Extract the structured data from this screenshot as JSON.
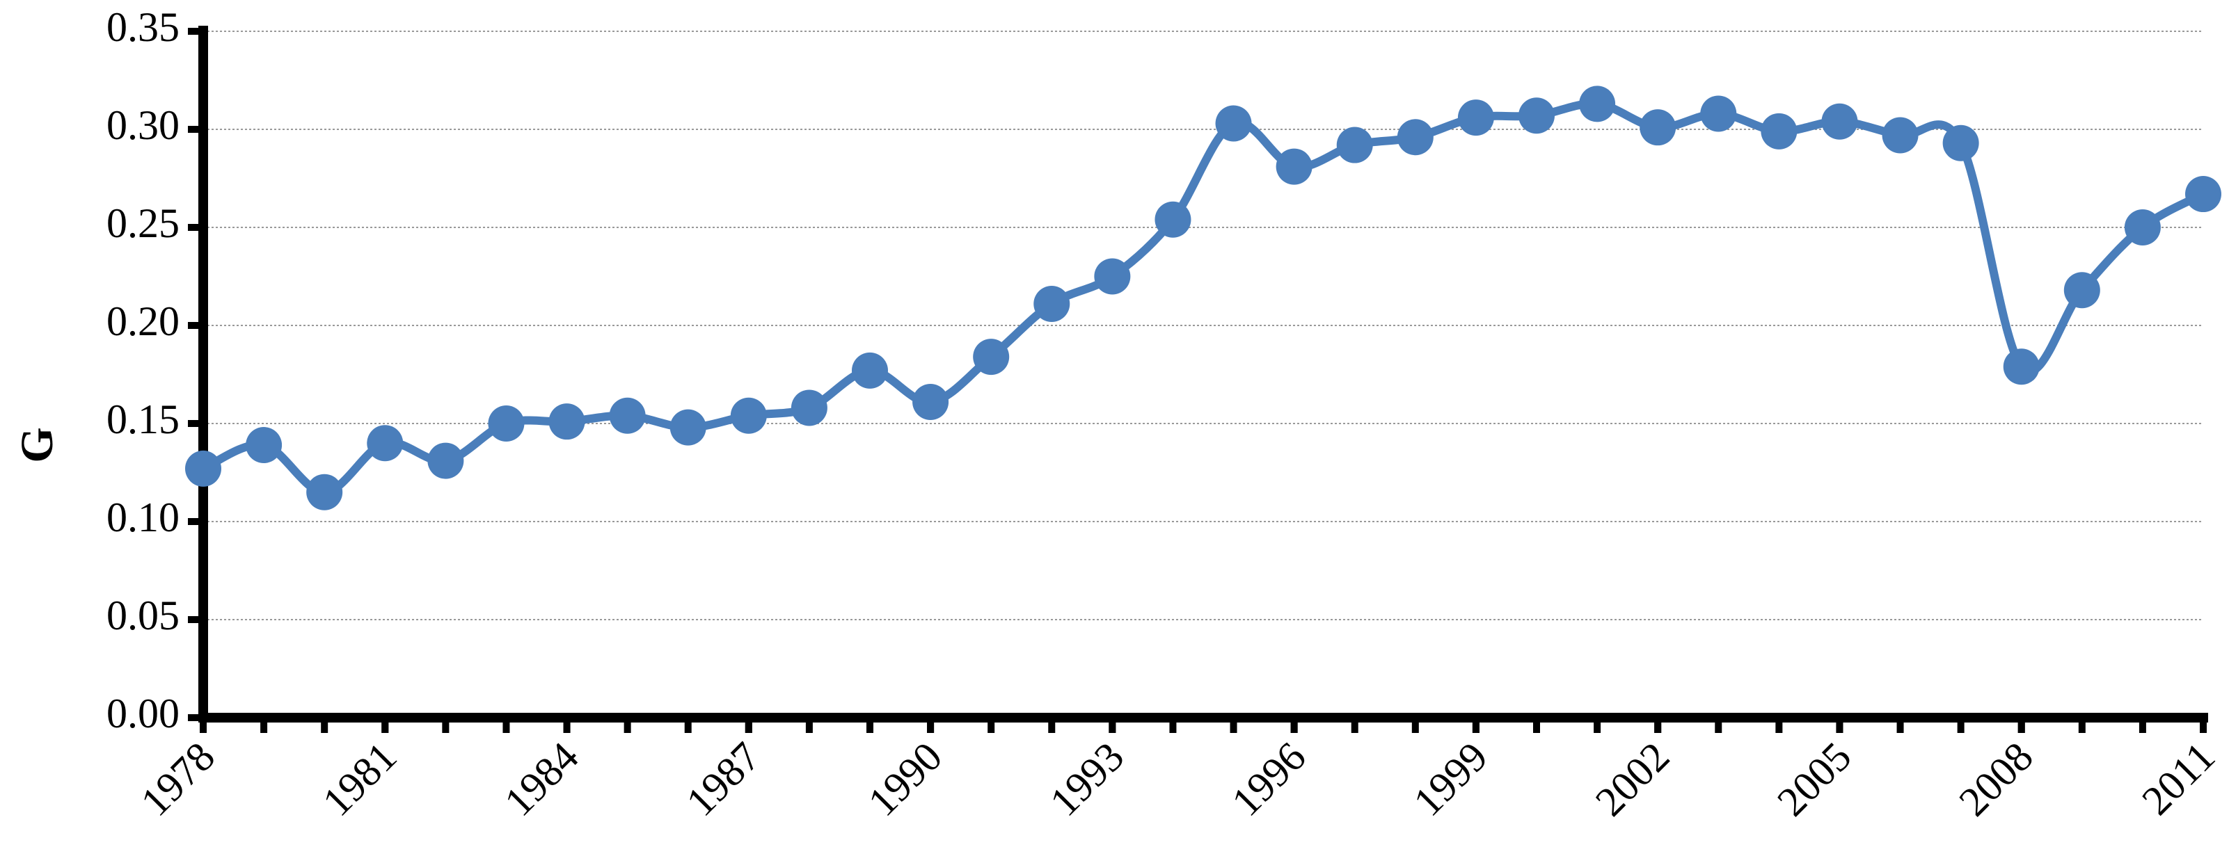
{
  "chart_data": {
    "type": "line",
    "y_label": "G",
    "x": [
      1978,
      1979,
      1980,
      1981,
      1982,
      1983,
      1984,
      1985,
      1986,
      1987,
      1988,
      1989,
      1990,
      1991,
      1992,
      1993,
      1994,
      1995,
      1996,
      1997,
      1998,
      1999,
      2000,
      2001,
      2002,
      2003,
      2004,
      2005,
      2006,
      2007,
      2008,
      2009,
      2010,
      2011
    ],
    "series": [
      {
        "name": "G",
        "color": "#4a7ebb",
        "values": [
          0.127,
          0.139,
          0.115,
          0.14,
          0.131,
          0.15,
          0.151,
          0.154,
          0.148,
          0.154,
          0.158,
          0.177,
          0.161,
          0.184,
          0.211,
          0.225,
          0.254,
          0.303,
          0.281,
          0.292,
          0.296,
          0.306,
          0.307,
          0.313,
          0.301,
          0.308,
          0.299,
          0.304,
          0.297,
          0.293,
          0.179,
          0.218,
          0.25,
          0.267
        ]
      }
    ],
    "xlim": [
      1978,
      2011
    ],
    "xticks": [
      1978,
      1981,
      1984,
      1987,
      1990,
      1993,
      1996,
      1999,
      2002,
      2005,
      2008,
      2011
    ],
    "ylim": [
      0,
      0.35
    ],
    "yticks": [
      {
        "value": 0,
        "label": "0.00"
      },
      0.05,
      {
        "value": 0.1,
        "label": "0.10"
      },
      0.15,
      {
        "value": 0.2,
        "label": "0.20"
      },
      0.25,
      {
        "value": 0.3,
        "label": "0.30"
      },
      0.35
    ],
    "grid": true
  }
}
